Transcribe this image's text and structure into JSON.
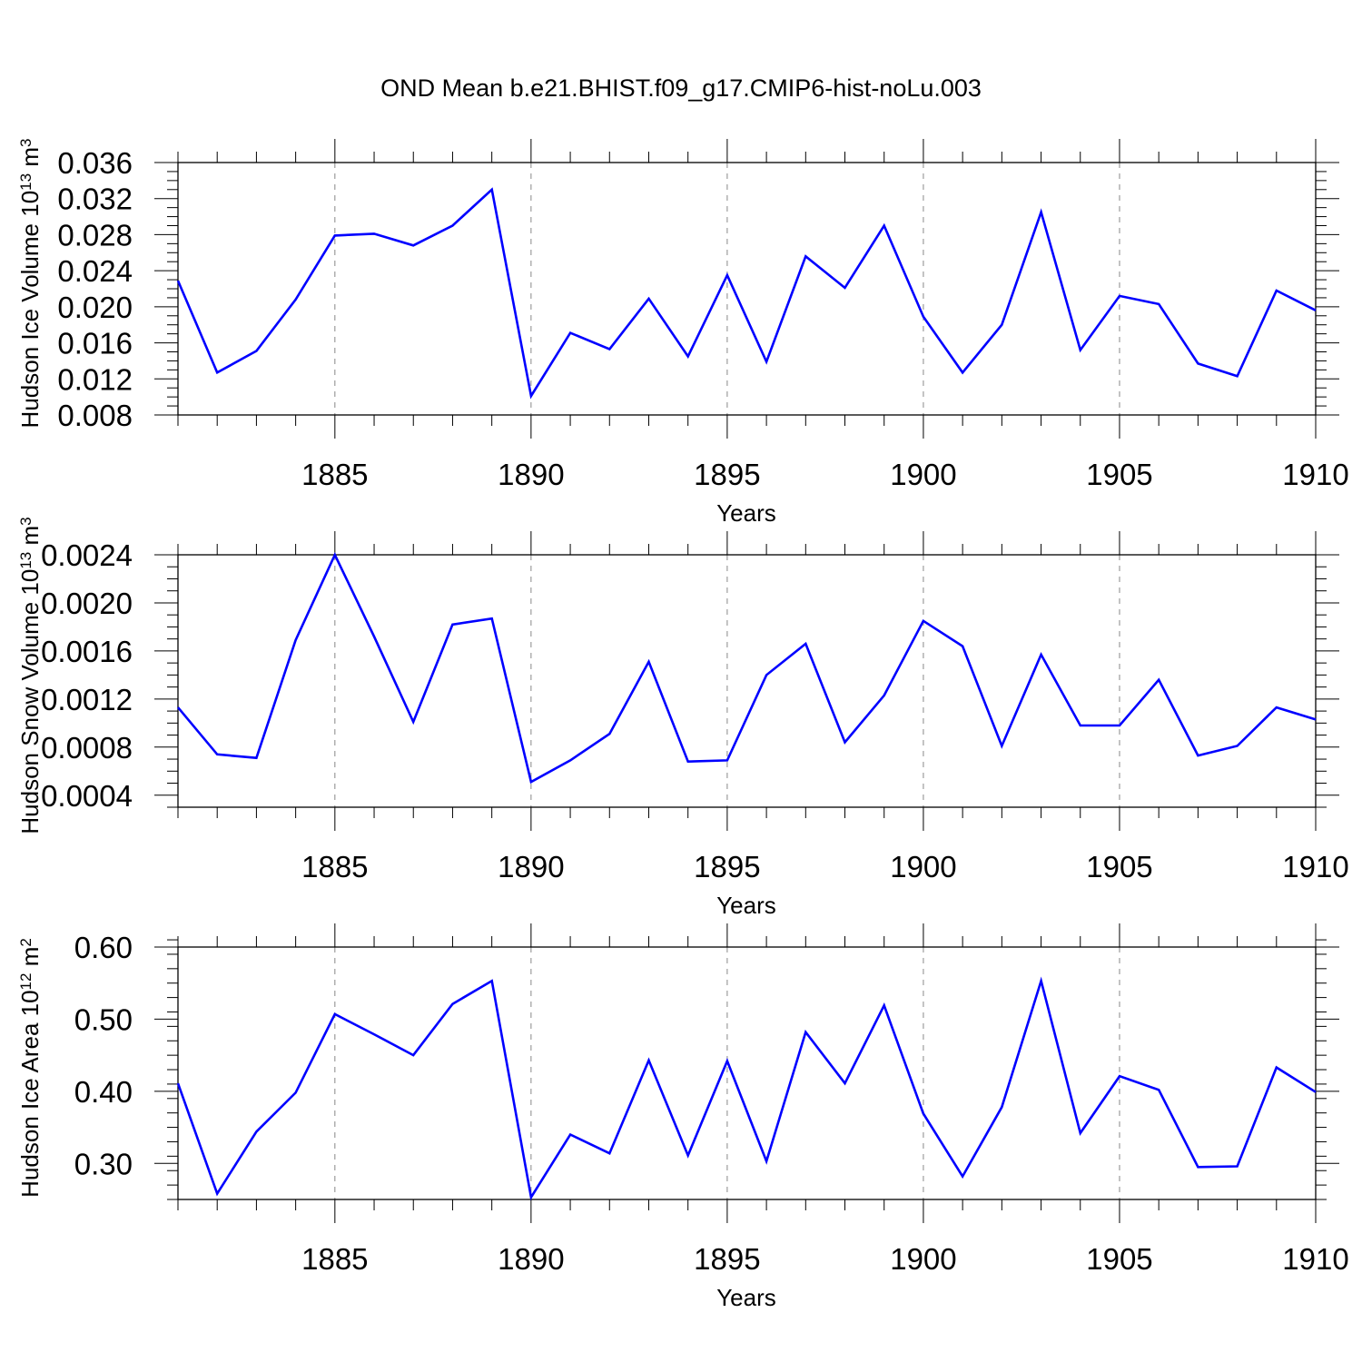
{
  "title": "OND Mean b.e21.BHIST.f09_g17.CMIP6-hist-noLu.003",
  "line_color": "#0000ff",
  "chart_data": [
    {
      "type": "line",
      "xlabel": "Years",
      "ylabel": "Hudson Ice Volume 10",
      "ylabel_exp": "13",
      "ylabel_unit": " m",
      "ylabel_unit_exp": "3",
      "xlim": [
        1881,
        1910
      ],
      "ylim": [
        0.008,
        0.036
      ],
      "x_ticks": [
        1885,
        1890,
        1895,
        1900,
        1905,
        1910
      ],
      "x_tick_labels": [
        "1885",
        "1890",
        "1895",
        "1900",
        "1905",
        "1910"
      ],
      "y_ticks": [
        0.008,
        0.012,
        0.016,
        0.02,
        0.024,
        0.028,
        0.032,
        0.036
      ],
      "y_tick_labels": [
        "0.008",
        "0.012",
        "0.016",
        "0.020",
        "0.024",
        "0.028",
        "0.032",
        "0.036"
      ],
      "y_minor_step": 0.001,
      "grid": "vertical dashed at major x ticks",
      "x": [
        1881,
        1882,
        1883,
        1884,
        1885,
        1886,
        1887,
        1888,
        1889,
        1890,
        1891,
        1892,
        1893,
        1894,
        1895,
        1896,
        1897,
        1898,
        1899,
        1900,
        1901,
        1902,
        1903,
        1904,
        1905,
        1906,
        1907,
        1908,
        1909,
        1910
      ],
      "values": [
        0.0229,
        0.0127,
        0.0151,
        0.0208,
        0.0279,
        0.0281,
        0.0268,
        0.029,
        0.033,
        0.0101,
        0.0171,
        0.0153,
        0.0209,
        0.0145,
        0.0235,
        0.0139,
        0.0256,
        0.0221,
        0.029,
        0.0189,
        0.0127,
        0.018,
        0.0305,
        0.0152,
        0.0212,
        0.0203,
        0.0137,
        0.0123,
        0.0218,
        0.0196
      ]
    },
    {
      "type": "line",
      "xlabel": "Years",
      "ylabel": "Hudson Snow Volume 10",
      "ylabel_exp": "13",
      "ylabel_unit": " m",
      "ylabel_unit_exp": "3",
      "xlim": [
        1881,
        1910
      ],
      "ylim": [
        0.0003,
        0.0024
      ],
      "x_ticks": [
        1885,
        1890,
        1895,
        1900,
        1905,
        1910
      ],
      "x_tick_labels": [
        "1885",
        "1890",
        "1895",
        "1900",
        "1905",
        "1910"
      ],
      "y_ticks": [
        0.0004,
        0.0008,
        0.0012,
        0.0016,
        0.002,
        0.0024
      ],
      "y_tick_labels": [
        "0.0004",
        "0.0008",
        "0.0012",
        "0.0016",
        "0.0020",
        "0.0024"
      ],
      "y_minor_step": 0.0001,
      "grid": "vertical dashed at major x ticks",
      "x": [
        1881,
        1882,
        1883,
        1884,
        1885,
        1886,
        1887,
        1888,
        1889,
        1890,
        1891,
        1892,
        1893,
        1894,
        1895,
        1896,
        1897,
        1898,
        1899,
        1900,
        1901,
        1902,
        1903,
        1904,
        1905,
        1906,
        1907,
        1908,
        1909,
        1910
      ],
      "values": [
        0.00113,
        0.00074,
        0.00071,
        0.00169,
        0.0024,
        0.00172,
        0.00101,
        0.00182,
        0.00187,
        0.00051,
        0.00069,
        0.00091,
        0.00151,
        0.00068,
        0.00069,
        0.0014,
        0.00166,
        0.00084,
        0.00123,
        0.00185,
        0.00164,
        0.00081,
        0.00157,
        0.00098,
        0.00098,
        0.00136,
        0.00073,
        0.00081,
        0.00113,
        0.00103
      ]
    },
    {
      "type": "line",
      "xlabel": "Years",
      "ylabel": "Hudson Ice Area 10",
      "ylabel_exp": "12",
      "ylabel_unit": " m",
      "ylabel_unit_exp": "2",
      "xlim": [
        1881,
        1910
      ],
      "ylim": [
        0.25,
        0.6
      ],
      "x_ticks": [
        1885,
        1890,
        1895,
        1900,
        1905,
        1910
      ],
      "x_tick_labels": [
        "1885",
        "1890",
        "1895",
        "1900",
        "1905",
        "1910"
      ],
      "y_ticks": [
        0.3,
        0.4,
        0.5,
        0.6
      ],
      "y_tick_labels": [
        "0.30",
        "0.40",
        "0.50",
        "0.60"
      ],
      "y_minor_step": 0.02,
      "grid": "vertical dashed at major x ticks",
      "x": [
        1881,
        1882,
        1883,
        1884,
        1885,
        1886,
        1887,
        1888,
        1889,
        1890,
        1891,
        1892,
        1893,
        1894,
        1895,
        1896,
        1897,
        1898,
        1899,
        1900,
        1901,
        1902,
        1903,
        1904,
        1905,
        1906,
        1907,
        1908,
        1909,
        1910
      ],
      "values": [
        0.411,
        0.258,
        0.344,
        0.398,
        0.507,
        0.479,
        0.45,
        0.521,
        0.553,
        0.253,
        0.34,
        0.314,
        0.443,
        0.311,
        0.442,
        0.303,
        0.482,
        0.411,
        0.519,
        0.369,
        0.282,
        0.378,
        0.553,
        0.342,
        0.421,
        0.402,
        0.295,
        0.296,
        0.433,
        0.399
      ]
    }
  ]
}
